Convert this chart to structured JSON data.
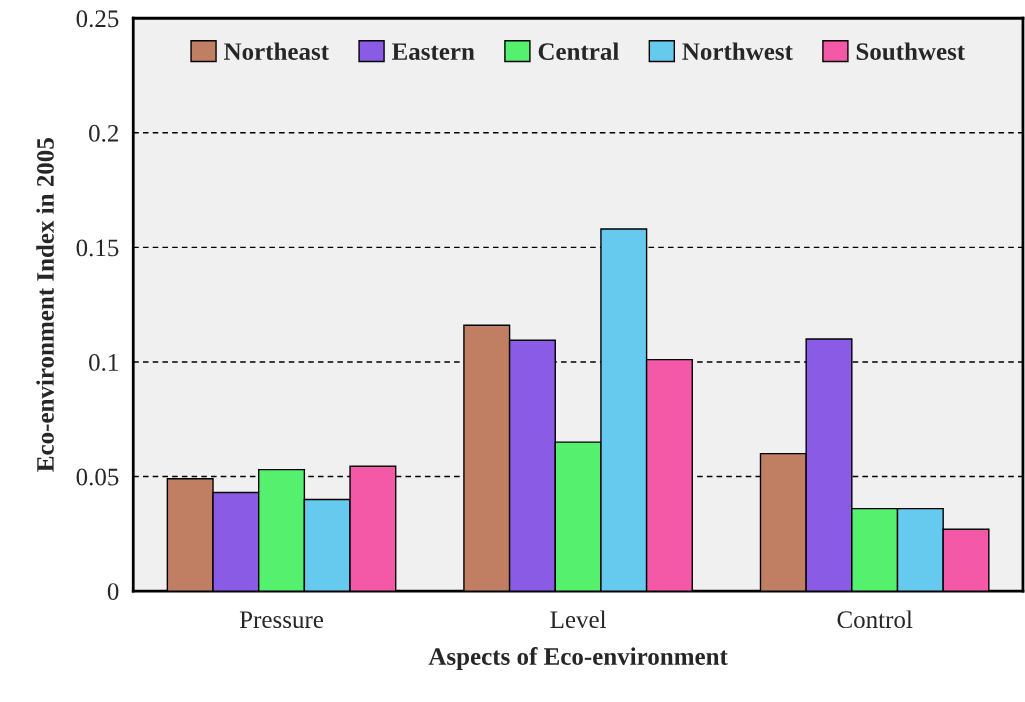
{
  "chart_data": {
    "type": "bar",
    "xlabel": "Aspects of Eco-environment",
    "ylabel": "Eco-environment Index in 2005",
    "categories": [
      "Pressure",
      "Level",
      "Control"
    ],
    "series": [
      {
        "name": "Northeast",
        "color": "#c07e62",
        "values": [
          0.049,
          0.116,
          0.06
        ]
      },
      {
        "name": "Eastern",
        "color": "#8a5ce6",
        "values": [
          0.043,
          0.1095,
          0.11
        ]
      },
      {
        "name": "Central",
        "color": "#55f06e",
        "values": [
          0.053,
          0.065,
          0.036
        ]
      },
      {
        "name": "Northwest",
        "color": "#66c9ee",
        "values": [
          0.04,
          0.158,
          0.036
        ]
      },
      {
        "name": "Southwest",
        "color": "#f459a8",
        "values": [
          0.0545,
          0.101,
          0.027
        ]
      }
    ],
    "ylim": [
      0,
      0.25
    ],
    "yticks": [
      0,
      0.05,
      0.1,
      0.15,
      0.2,
      0.25
    ],
    "grid": "y",
    "legend": "top"
  }
}
